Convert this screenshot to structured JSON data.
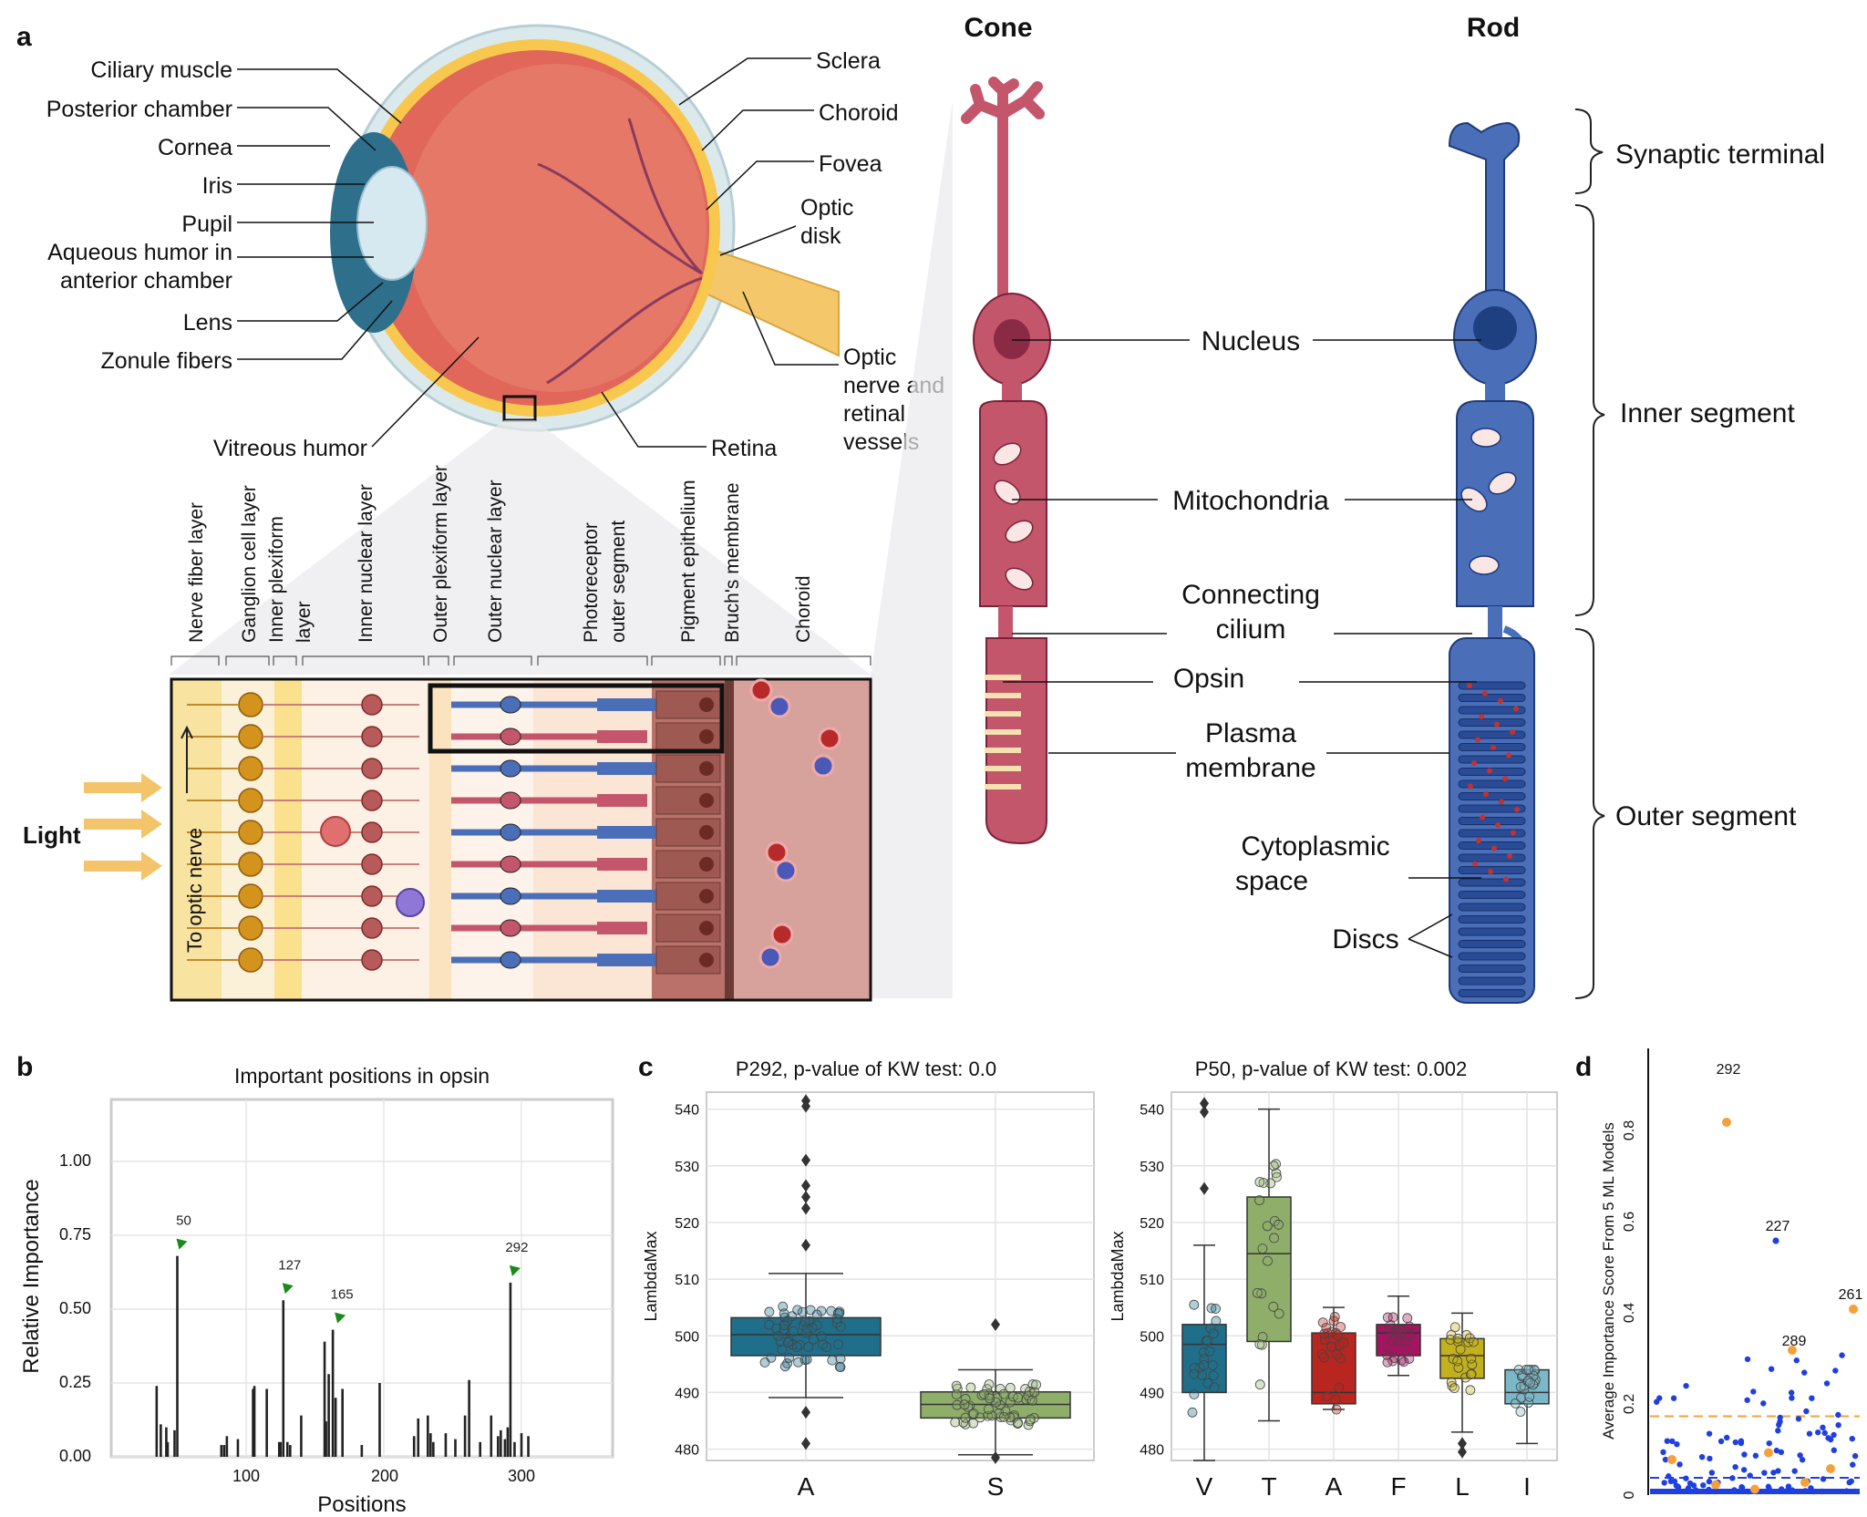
{
  "panel_letters": {
    "a": "a",
    "b": "b",
    "c": "c",
    "d": "d"
  },
  "eye": {
    "labels_left": [
      "Ciliary muscle",
      "Posterior chamber",
      "Cornea",
      "Iris",
      "Pupil",
      "Aqueous humor in",
      "anterior chamber",
      "Lens",
      "Zonule fibers",
      "Vitreous humor"
    ],
    "labels_right": [
      "Sclera",
      "Choroid",
      "Fovea",
      "Optic",
      "disk",
      "Optic",
      "nerve and",
      "retinal",
      "vessels",
      "Retina"
    ]
  },
  "retina": {
    "layers": [
      "Nerve fiber layer",
      "Ganglion cell layer",
      "Inner plexiform",
      "layer",
      "Inner nuclear layer",
      "Outer plexiform layer",
      "Outer nuclear layer",
      "Photoreceptor",
      "outer segment",
      "Pigment epithelium",
      "Bruch's membrane",
      "Choroid"
    ],
    "light": "Light",
    "to_optic": "To optic nerve"
  },
  "photoreceptors": {
    "cone_title": "Cone",
    "rod_title": "Rod",
    "center_labels": [
      "Nucleus",
      "Mitochondria",
      "Connecting",
      "cilium",
      "Opsin",
      "Plasma",
      "membrane",
      "Cytoplasmic",
      "space",
      "Discs"
    ],
    "segments": [
      "Synaptic terminal",
      "Inner segment",
      "Outer segment"
    ]
  },
  "panel_b": {
    "title": "Important positions in opsin",
    "xlabel": "Positions",
    "ylabel": "Relative Importance",
    "yticks": [
      "0.00",
      "0.25",
      "0.50",
      "0.75",
      "1.00"
    ],
    "xticks": [
      "100",
      "200",
      "300"
    ],
    "marker_labels": [
      "50",
      "127",
      "165",
      "292"
    ]
  },
  "panel_c1": {
    "title": "P292, p-value of KW test: 0.0",
    "ylabel": "LambdaMax",
    "yticks": [
      "480",
      "490",
      "500",
      "510",
      "520",
      "530",
      "540"
    ],
    "categories": [
      "A",
      "S"
    ]
  },
  "panel_c2": {
    "title": "P50, p-value of KW test: 0.002",
    "ylabel": "LambdaMax",
    "yticks": [
      "480",
      "490",
      "500",
      "510",
      "520",
      "530",
      "540"
    ],
    "categories": [
      "V",
      "T",
      "A",
      "F",
      "L",
      "I"
    ]
  },
  "panel_d": {
    "ylabel": "Average Importance Score From 5 ML Models",
    "yticks": [
      "0",
      "0.2",
      "0.4",
      "0.6",
      "0.8"
    ],
    "point_labels": [
      "292",
      "227",
      "289",
      "261"
    ]
  },
  "colors": {
    "cone": "#c4566c",
    "rod": "#4a6fb8",
    "box_A": "#1f6f8b",
    "box_S": "#8fae6a",
    "box_T": "#8fae6a",
    "box_A2": "#b8261f",
    "box_F": "#a3155f",
    "box_L": "#c2b11c",
    "box_I": "#7ab8c8",
    "marker_green": "#1a8a1a",
    "orange": "#f5a03a",
    "blue_dot": "#1f3fe0"
  },
  "chart_data": [
    {
      "type": "bar",
      "title": "Important positions in opsin",
      "xlabel": "Positions",
      "ylabel": "Relative Importance",
      "ylim": [
        0,
        1.1
      ],
      "xlim": [
        20,
        330
      ],
      "x": [
        35,
        38,
        42,
        43,
        48,
        50,
        82,
        84,
        86,
        94,
        105,
        106,
        115,
        124,
        125,
        127,
        130,
        132,
        140,
        157,
        158,
        160,
        163,
        165,
        170,
        184,
        197,
        222,
        225,
        232,
        234,
        236,
        245,
        252,
        259,
        262,
        270,
        278,
        283,
        285,
        288,
        290,
        292,
        295,
        300,
        305
      ],
      "values": [
        0.24,
        0.11,
        0.1,
        0.05,
        0.09,
        0.68,
        0.04,
        0.04,
        0.07,
        0.06,
        0.23,
        0.24,
        0.23,
        0.05,
        0.05,
        0.53,
        0.05,
        0.04,
        0.14,
        0.39,
        0.12,
        0.28,
        0.43,
        0.2,
        0.23,
        0.04,
        0.25,
        0.07,
        0.13,
        0.14,
        0.08,
        0.05,
        0.08,
        0.06,
        0.14,
        0.26,
        0.05,
        0.14,
        0.07,
        0.09,
        0.06,
        0.1,
        0.59,
        0.05,
        0.08,
        0.07
      ]
    },
    {
      "type": "box",
      "title": "P292, p-value of KW test: 0.0",
      "ylabel": "LambdaMax",
      "ylim": [
        478,
        543
      ],
      "categories": [
        "A",
        "S"
      ],
      "boxes": [
        {
          "q1": 496.5,
          "median": 500.2,
          "q3": 503.2,
          "whislo": 489.1,
          "whishi": 511,
          "fliers": [
            541.5,
            540.5,
            531,
            526.5,
            524.5,
            522.5,
            516,
            486.5,
            481
          ]
        },
        {
          "q1": 485.5,
          "median": 487.9,
          "q3": 490.1,
          "whislo": 479,
          "whishi": 494,
          "fliers": [
            502,
            478.5
          ]
        }
      ]
    },
    {
      "type": "box",
      "title": "P50, p-value of KW test: 0.002",
      "ylabel": "LambdaMax",
      "ylim": [
        478,
        543
      ],
      "categories": [
        "V",
        "T",
        "A",
        "F",
        "L",
        "I"
      ],
      "boxes": [
        {
          "q1": 490,
          "median": 498.5,
          "q3": 502,
          "whislo": 478,
          "whishi": 516,
          "fliers": [
            541,
            539.5,
            526
          ]
        },
        {
          "q1": 499,
          "median": 514.5,
          "q3": 524.5,
          "whislo": 485,
          "whishi": 540,
          "fliers": []
        },
        {
          "q1": 488,
          "median": 490,
          "q3": 500.5,
          "whislo": 487,
          "whishi": 505,
          "fliers": []
        },
        {
          "q1": 496.5,
          "median": 500.5,
          "q3": 502,
          "whislo": 493,
          "whishi": 507,
          "fliers": []
        },
        {
          "q1": 492.5,
          "median": 496.5,
          "q3": 499.5,
          "whislo": 483,
          "whishi": 504,
          "fliers": [
            481,
            479.5
          ]
        },
        {
          "q1": 488,
          "median": 490,
          "q3": 494,
          "whislo": 481,
          "whishi": 494,
          "fliers": []
        }
      ]
    },
    {
      "type": "scatter",
      "ylabel": "Average Importance Score From 5 ML Models",
      "ylim": [
        0,
        0.92
      ],
      "series": [
        {
          "values": [
            [
              292,
              0.81
            ],
            [
              227,
              0.55
            ],
            [
              289,
              0.31
            ],
            [
              261,
              0.4
            ]
          ]
        }
      ],
      "reference_lines": [
        0.165,
        0.03
      ]
    }
  ]
}
